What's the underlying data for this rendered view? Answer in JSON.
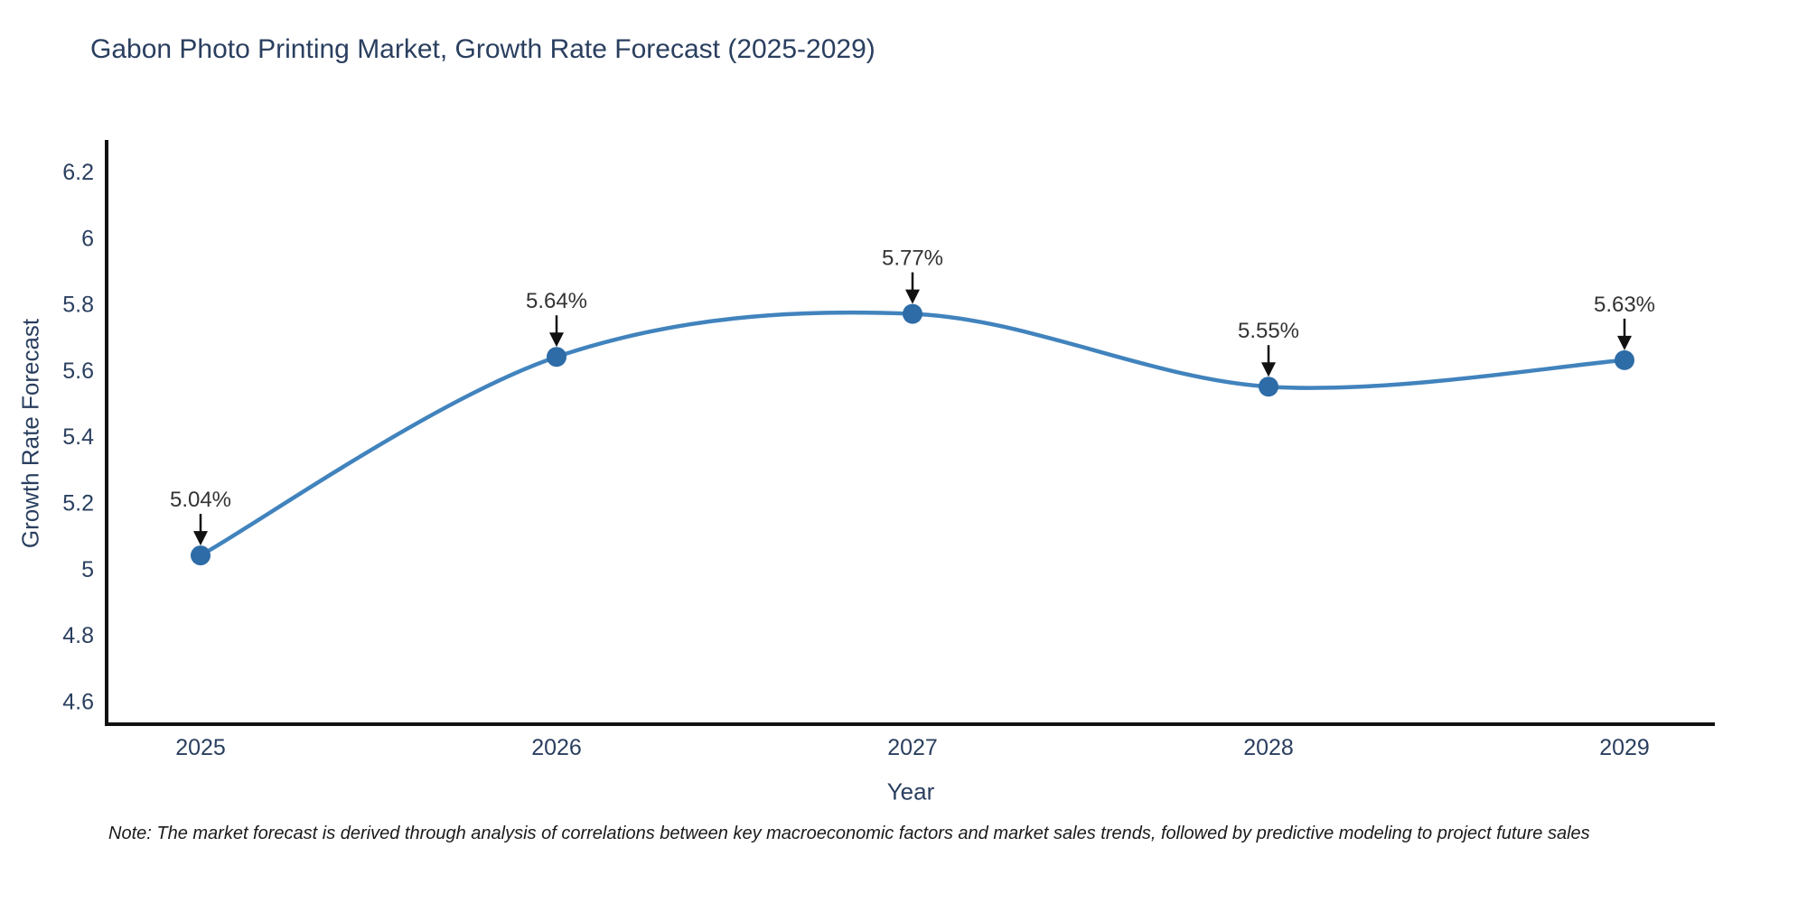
{
  "chart_data": {
    "type": "line",
    "line_shape": "spline",
    "title": "Gabon Photo Printing Market, Growth Rate Forecast (2025-2029)",
    "xlabel": "Year",
    "ylabel": "Growth Rate Forecast",
    "categories": [
      "2025",
      "2026",
      "2027",
      "2028",
      "2029"
    ],
    "values": [
      5.04,
      5.64,
      5.77,
      5.55,
      5.63
    ],
    "point_labels": [
      "5.04%",
      "5.64%",
      "5.77%",
      "5.55%",
      "5.63%"
    ],
    "y_tick_labels": [
      "4.6",
      "4.8",
      "5",
      "5.2",
      "5.4",
      "5.6",
      "5.8",
      "6",
      "6.2"
    ],
    "y_tick_values": [
      4.6,
      4.8,
      5.0,
      5.2,
      5.4,
      5.6,
      5.8,
      6.0,
      6.2
    ],
    "ylim": [
      4.53,
      6.29
    ],
    "grid": false,
    "legend_position": "none",
    "note": "Note: The market forecast is derived through analysis of correlations between key macroeconomic factors and market sales trends, followed by predictive modeling to project future sales",
    "colors": {
      "line": "#4183bd",
      "marker": "#2d6ca6",
      "axis_line": "#111111",
      "arrow": "#111111",
      "text": "#2a3f5f",
      "annotation_text": "#333333",
      "background": "#ffffff"
    }
  }
}
